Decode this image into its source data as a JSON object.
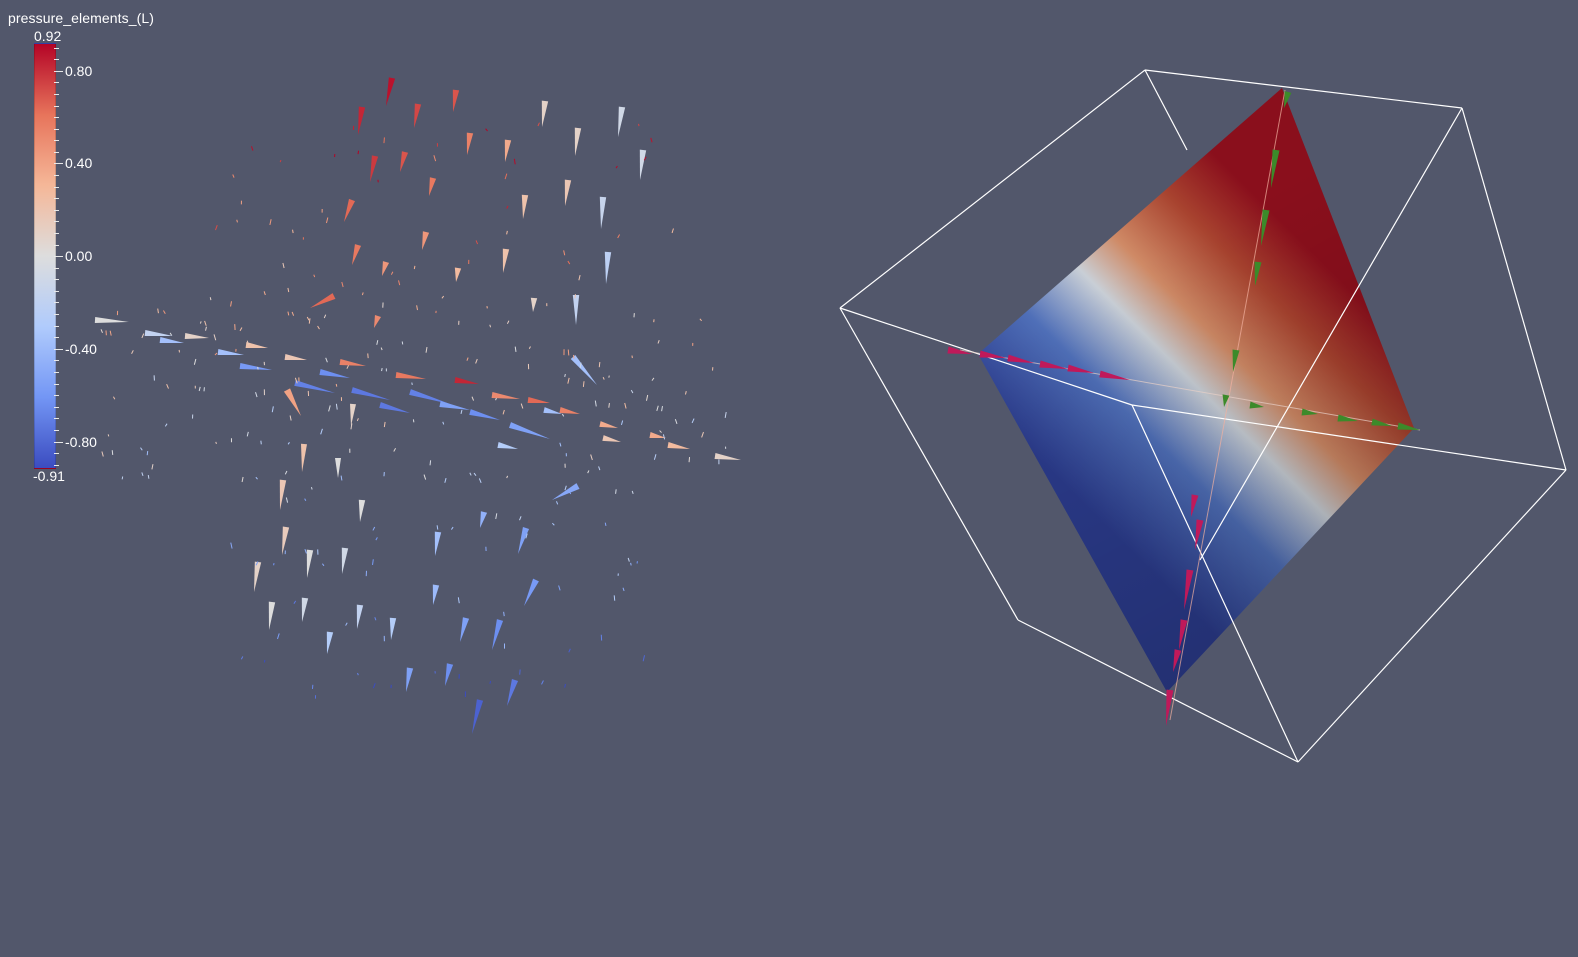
{
  "window": {
    "background": "#52576b"
  },
  "legend": {
    "title": "pressure_elements_(L)",
    "max_label": "0.92",
    "min_label": "-0.91",
    "max_value": 0.92,
    "min_value": -0.91,
    "tick_labels": [
      "0.80",
      "0.40",
      "0.00",
      "-0.40",
      "-0.80"
    ],
    "tick_values": [
      0.8,
      0.4,
      0.0,
      -0.4,
      -0.8
    ],
    "colormap": [
      "#3b4cc0",
      "#7396f5",
      "#b0cbfc",
      "#dddddd",
      "#f5b798",
      "#e7745b",
      "#b40426"
    ]
  },
  "scene": {
    "left_view": "glyph-arrows",
    "right_view": "clipped-slab-in-bounding-box",
    "outline_color": "#ffffff",
    "arrow_color_left_axis": "#c0195a",
    "arrow_color_right_axis": "#3c8a2a"
  }
}
